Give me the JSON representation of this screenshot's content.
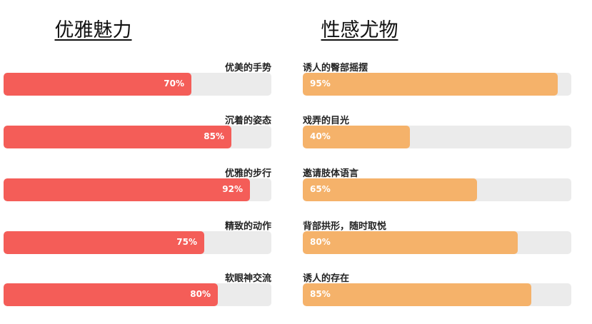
{
  "chart_data": [
    {
      "type": "bar",
      "title": "优雅魅力",
      "orientation": "horizontal",
      "value_unit": "%",
      "ylim": [
        0,
        100
      ],
      "color": "#f45d58",
      "label_position": "right",
      "value_label_position": "inside-right",
      "categories": [
        "优美的手势",
        "沉着的姿态",
        "优雅的步行",
        "精致的动作",
        "软眼神交流"
      ],
      "values": [
        70,
        85,
        92,
        75,
        80
      ],
      "value_labels": [
        "70%",
        "85%",
        "92%",
        "75%",
        "80%"
      ]
    },
    {
      "type": "bar",
      "title": "性感尤物",
      "orientation": "horizontal",
      "value_unit": "%",
      "ylim": [
        0,
        100
      ],
      "color": "#f5b26a",
      "label_position": "left",
      "value_label_position": "inside-left",
      "categories": [
        "诱人的臀部摇摆",
        "戏弄的目光",
        "邀请肢体语言",
        "背部拱形，随时取悦",
        "诱人的存在"
      ],
      "values": [
        95,
        40,
        65,
        80,
        85
      ],
      "value_labels": [
        "95%",
        "40%",
        "65%",
        "80%",
        "85%"
      ]
    }
  ],
  "track_color": "#ebebeb"
}
